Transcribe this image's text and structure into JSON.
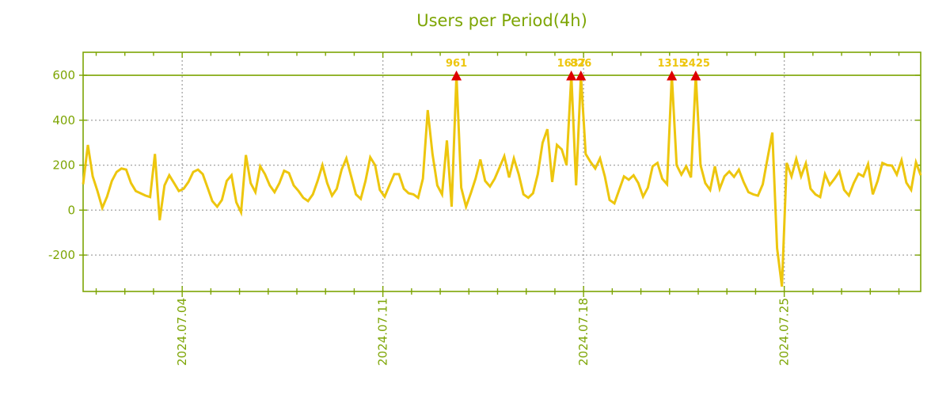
{
  "chart_data": {
    "type": "line",
    "title": "Users per Period(4h)",
    "legend": "none",
    "colors": {
      "axis_and_labels": "#7DA504",
      "series_line": "#EDC60E",
      "grid_dotted": "#AAAAAA",
      "peak_marker": "#DE0000",
      "peak_label": "#EDC60E",
      "background": "#FFFFFF"
    },
    "y_axis": {
      "tick_labels": [
        "600",
        "400",
        "200",
        "0",
        "-200"
      ],
      "tick_values": [
        600,
        400,
        200,
        0,
        -200
      ],
      "solid_line_value": 600,
      "clip_value": 600,
      "axis_range": [
        -362,
        702
      ],
      "grid": "dotted"
    },
    "x_axis": {
      "tick_labels": [
        "2024.07.04",
        "2024.07.11",
        "2024.07.18",
        "2024.07.25"
      ],
      "minor_tick_unit": "1 day",
      "day_tick_start_index": 2.73,
      "day_tick_step": 5.99,
      "day_tick_count": 29,
      "labeled_day_ticks": [
        3,
        10,
        17,
        24
      ],
      "vertical_gridlines_at_labels": "dotted"
    },
    "series": [
      {
        "name": "Users",
        "period": "4h",
        "values": [
          115,
          290,
          150,
          85,
          10,
          60,
          130,
          170,
          185,
          180,
          120,
          85,
          75,
          65,
          58,
          250,
          -45,
          110,
          155,
          120,
          85,
          95,
          125,
          170,
          180,
          160,
          100,
          40,
          15,
          45,
          130,
          155,
          35,
          -10,
          245,
          120,
          80,
          195,
          160,
          110,
          80,
          120,
          175,
          165,
          110,
          85,
          55,
          40,
          70,
          130,
          200,
          120,
          64,
          95,
          180,
          230,
          150,
          70,
          50,
          130,
          235,
          200,
          90,
          60,
          110,
          160,
          160,
          95,
          75,
          70,
          55,
          140,
          445,
          250,
          110,
          70,
          310,
          15,
          961,
          100,
          15,
          75,
          140,
          225,
          130,
          105,
          140,
          190,
          240,
          145,
          230,
          160,
          70,
          55,
          75,
          160,
          300,
          360,
          125,
          290,
          270,
          200,
          1637,
          110,
          826,
          250,
          215,
          185,
          230,
          150,
          45,
          30,
          90,
          150,
          135,
          155,
          120,
          60,
          100,
          195,
          210,
          140,
          115,
          1315,
          200,
          158,
          195,
          145,
          2425,
          200,
          120,
          90,
          195,
          95,
          150,
          172,
          148,
          180,
          125,
          80,
          70,
          64,
          115,
          230,
          345,
          -170,
          -340,
          210,
          150,
          228,
          150,
          208,
          95,
          70,
          58,
          160,
          112,
          140,
          172,
          90,
          65,
          120,
          162,
          150,
          205,
          70,
          130,
          210,
          200,
          198,
          158,
          222,
          122,
          90,
          213,
          155
        ]
      }
    ],
    "peak_markers": [
      {
        "point_index": 78,
        "label": "961",
        "value": 961
      },
      {
        "point_index": 102,
        "label": "1637",
        "value": 1637
      },
      {
        "point_index": 104,
        "label": "826",
        "value": 826
      },
      {
        "point_index": 123,
        "label": "1315",
        "value": 1315
      },
      {
        "point_index": 128,
        "label": "2425",
        "value": 2425
      }
    ]
  }
}
